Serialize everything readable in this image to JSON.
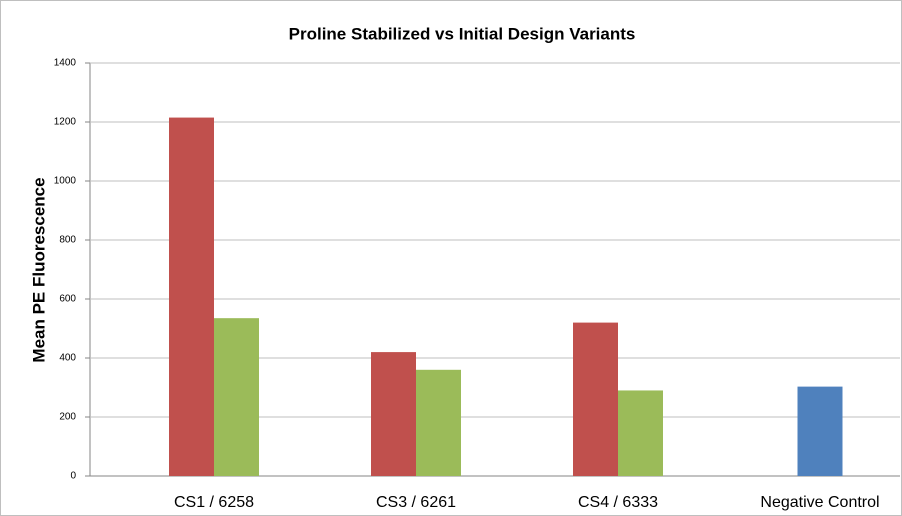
{
  "chart_data": {
    "type": "bar",
    "title": "Proline Stabilized vs Initial Design Variants",
    "y_label": "Mean PE Fluorescence",
    "categories": [
      "CS1 / 6258",
      "CS3 / 6261",
      "CS4 / 6333",
      "Negative Control"
    ],
    "series": [
      {
        "color": "#c0504d",
        "values": [
          1215,
          420,
          520,
          null
        ]
      },
      {
        "color": "#9bbb59",
        "values": [
          535,
          360,
          290,
          null
        ]
      },
      {
        "color": "#4f81bd",
        "values": [
          null,
          null,
          null,
          303
        ]
      }
    ],
    "ylim": [
      0,
      1400
    ],
    "yticks": [
      0,
      200,
      400,
      600,
      800,
      1000,
      1200,
      1400
    ],
    "grid": true
  }
}
